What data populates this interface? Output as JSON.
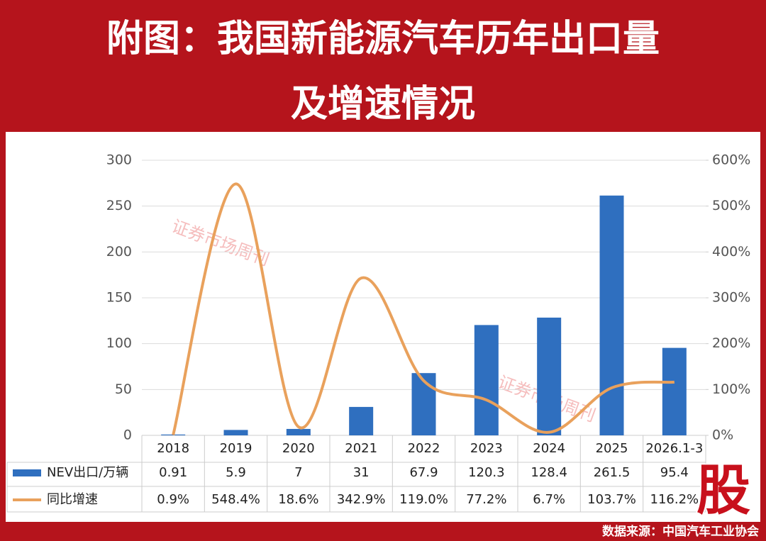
{
  "header": {
    "title_line1": "附图：我国新能源汽车历年出口量",
    "title_line2": "及增速情况"
  },
  "chart_data": {
    "type": "combo",
    "categories": [
      "2018",
      "2019",
      "2020",
      "2021",
      "2022",
      "2023",
      "2024",
      "2025",
      "2026.1-3"
    ],
    "series": [
      {
        "name": "NEV出口/万辆",
        "type": "bar",
        "color": "#2f6fbf",
        "values": [
          0.91,
          5.9,
          7,
          31,
          67.9,
          120.3,
          128.4,
          261.5,
          95.4
        ]
      },
      {
        "name": "同比增速",
        "type": "line",
        "axis": "y2",
        "color": "#e9a15c",
        "values": [
          0.9,
          548.4,
          18.6,
          342.9,
          119.0,
          77.2,
          6.7,
          103.7,
          116.2
        ],
        "value_labels": [
          "0.9%",
          "548.4%",
          "18.6%",
          "342.9%",
          "119.0%",
          "77.2%",
          "6.7%",
          "103.7%",
          "116.2%"
        ]
      }
    ],
    "ylim": [
      0,
      300
    ],
    "yticks": [
      0,
      50,
      100,
      150,
      200,
      250,
      300
    ],
    "y2lim": [
      0,
      600
    ],
    "y2ticks": [
      {
        "value": 0,
        "label": "0%"
      },
      {
        "value": 100,
        "label": "100%"
      },
      {
        "value": 200,
        "label": "200%"
      },
      {
        "value": 300,
        "label": "300%"
      },
      {
        "value": 400,
        "label": "400%"
      },
      {
        "value": 500,
        "label": "500%"
      },
      {
        "value": 600,
        "label": "600%"
      }
    ],
    "grid": true
  },
  "watermark": "证券市场周刊",
  "source": "数据来源：中国汽车工业协会",
  "logo": "股"
}
